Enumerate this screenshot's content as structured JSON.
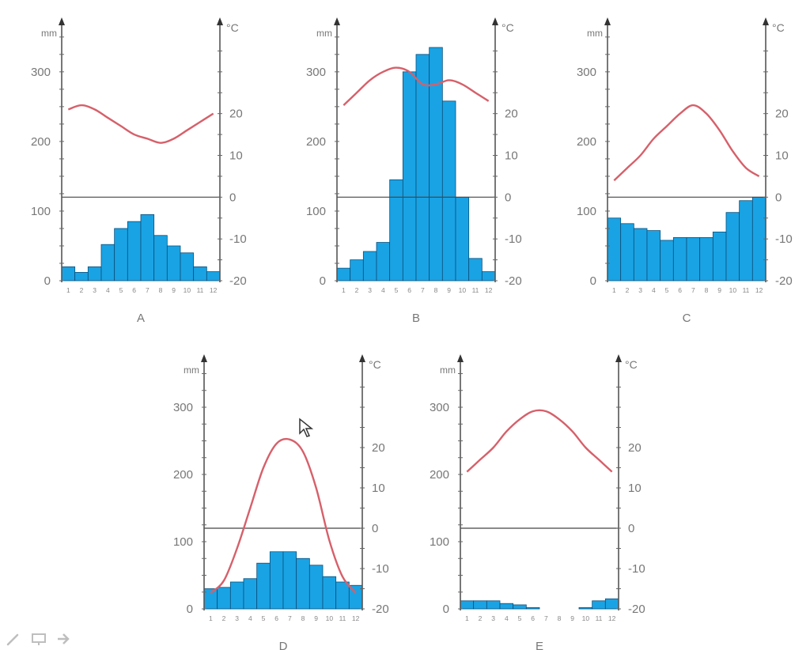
{
  "chart_data": [
    {
      "type": "bar",
      "title": "A",
      "categories": [
        "1",
        "2",
        "3",
        "4",
        "5",
        "6",
        "7",
        "8",
        "9",
        "10",
        "11",
        "12"
      ],
      "series": [
        {
          "type": "bar",
          "values": [
            20,
            12,
            20,
            52,
            75,
            85,
            95,
            65,
            50,
            40,
            20,
            13
          ]
        },
        {
          "type": "line",
          "values": [
            21,
            22,
            21,
            19,
            17,
            15,
            14,
            13,
            14,
            16,
            18,
            20
          ]
        }
      ],
      "left_axis": {
        "unit": "mm",
        "ticks": [
          0,
          100,
          200,
          300
        ],
        "range": [
          0,
          360
        ]
      },
      "right_axis": {
        "unit": "°C",
        "ticks": [
          20,
          10,
          0,
          -10,
          -20
        ],
        "range": [
          -20,
          40
        ]
      },
      "colors": {
        "bar": "#1aa3e4",
        "line": "#d6606a"
      }
    },
    {
      "type": "bar",
      "title": "B",
      "categories": [
        "1",
        "2",
        "3",
        "4",
        "5",
        "6",
        "7",
        "8",
        "9",
        "10",
        "11",
        "12"
      ],
      "series": [
        {
          "type": "bar",
          "values": [
            18,
            30,
            42,
            55,
            145,
            300,
            325,
            335,
            258,
            120,
            32,
            13
          ]
        },
        {
          "type": "line",
          "values": [
            22,
            25,
            28,
            30,
            31,
            30,
            27,
            27,
            28,
            27,
            25,
            23
          ]
        }
      ],
      "left_axis": {
        "unit": "mm",
        "ticks": [
          0,
          100,
          200,
          300
        ],
        "range": [
          0,
          360
        ]
      },
      "right_axis": {
        "unit": "°C",
        "ticks": [
          20,
          10,
          0,
          -10,
          -20
        ],
        "range": [
          -20,
          40
        ]
      },
      "colors": {
        "bar": "#1aa3e4",
        "line": "#d6606a"
      }
    },
    {
      "type": "bar",
      "title": "C",
      "categories": [
        "1",
        "2",
        "3",
        "4",
        "5",
        "6",
        "7",
        "8",
        "9",
        "10",
        "11",
        "12"
      ],
      "series": [
        {
          "type": "bar",
          "values": [
            90,
            82,
            75,
            72,
            58,
            62,
            62,
            62,
            70,
            98,
            115,
            120
          ]
        },
        {
          "type": "line",
          "values": [
            4,
            7,
            10,
            14,
            17,
            20,
            22,
            20,
            16,
            11,
            7,
            5
          ]
        }
      ],
      "left_axis": {
        "unit": "mm",
        "ticks": [
          0,
          100,
          200,
          300
        ],
        "range": [
          0,
          360
        ]
      },
      "right_axis": {
        "unit": "°C",
        "ticks": [
          20,
          10,
          0,
          -10,
          -20
        ],
        "range": [
          -20,
          40
        ]
      },
      "colors": {
        "bar": "#1aa3e4",
        "line": "#d6606a"
      }
    },
    {
      "type": "bar",
      "title": "D",
      "categories": [
        "1",
        "2",
        "3",
        "4",
        "5",
        "6",
        "7",
        "8",
        "9",
        "10",
        "11",
        "12"
      ],
      "series": [
        {
          "type": "bar",
          "values": [
            30,
            32,
            40,
            45,
            68,
            85,
            85,
            75,
            65,
            48,
            40,
            35
          ]
        },
        {
          "type": "line",
          "values": [
            -16,
            -13,
            -5,
            5,
            15,
            21,
            22,
            19,
            10,
            -3,
            -12,
            -16
          ]
        }
      ],
      "left_axis": {
        "unit": "mm",
        "ticks": [
          0,
          100,
          200,
          300
        ],
        "range": [
          0,
          360
        ]
      },
      "right_axis": {
        "unit": "°C",
        "ticks": [
          20,
          10,
          0,
          -10,
          -20
        ],
        "range": [
          -20,
          40
        ]
      },
      "colors": {
        "bar": "#1aa3e4",
        "line": "#d6606a"
      }
    },
    {
      "type": "bar",
      "title": "E",
      "categories": [
        "1",
        "2",
        "3",
        "4",
        "5",
        "6",
        "7",
        "8",
        "9",
        "10",
        "11",
        "12"
      ],
      "series": [
        {
          "type": "bar",
          "values": [
            12,
            12,
            12,
            8,
            6,
            2,
            0,
            0,
            0,
            2,
            12,
            15
          ]
        },
        {
          "type": "line",
          "values": [
            14,
            17,
            20,
            24,
            27,
            29,
            29,
            27,
            24,
            20,
            17,
            14
          ]
        }
      ],
      "left_axis": {
        "unit": "mm",
        "ticks": [
          0,
          100,
          200,
          300
        ],
        "range": [
          0,
          360
        ]
      },
      "right_axis": {
        "unit": "°C",
        "ticks": [
          20,
          10,
          0,
          -10,
          -20
        ],
        "range": [
          -20,
          40
        ]
      },
      "colors": {
        "bar": "#1aa3e4",
        "line": "#d6606a"
      }
    }
  ],
  "toolbar": {
    "icons": [
      "pen-icon",
      "presenter-icon",
      "arrow-icon"
    ]
  }
}
